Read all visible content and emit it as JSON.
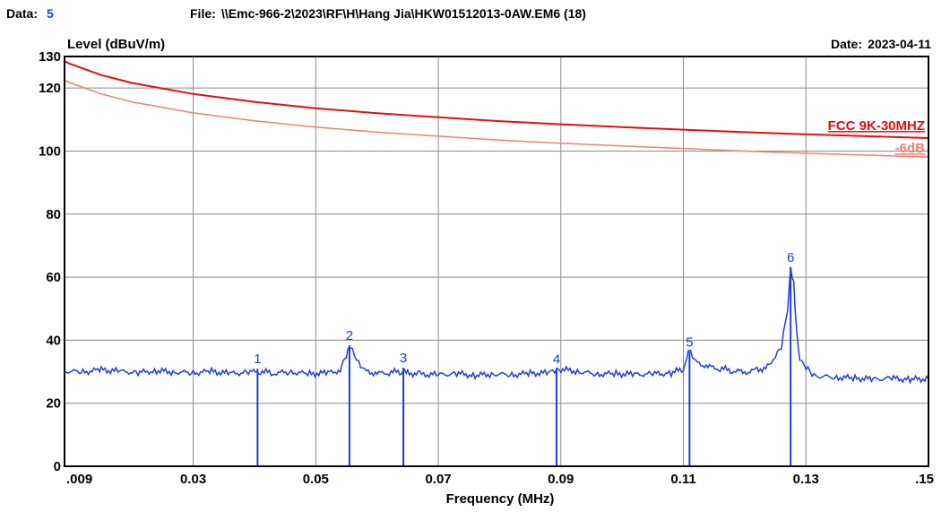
{
  "header": {
    "data_label": "Data:",
    "data_value": "5",
    "file_label": "File:",
    "file_value": "\\\\Emc-966-2\\2023\\RF\\H\\Hang Jia\\HKW01512013-0AW.EM6  (18)",
    "date_label": "Date:",
    "date_value": "2023-04-11"
  },
  "chart_data": {
    "type": "line",
    "xlabel": "Frequency (MHz)",
    "ylabel": "Level (dBuV/m)",
    "xlim": [
      0.009,
      0.15
    ],
    "ylim": [
      0,
      130
    ],
    "grid": true,
    "x_ticks": [
      {
        "value": 0.009,
        "label": ".009"
      },
      {
        "value": 0.03,
        "label": "0.03"
      },
      {
        "value": 0.05,
        "label": "0.05"
      },
      {
        "value": 0.07,
        "label": "0.07"
      },
      {
        "value": 0.09,
        "label": "0.09"
      },
      {
        "value": 0.11,
        "label": "0.11"
      },
      {
        "value": 0.13,
        "label": "0.13"
      },
      {
        "value": 0.15,
        "label": ".15"
      }
    ],
    "y_ticks": [
      {
        "value": 0,
        "label": "0"
      },
      {
        "value": 20,
        "label": "20"
      },
      {
        "value": 40,
        "label": "40"
      },
      {
        "value": 60,
        "label": "60"
      },
      {
        "value": 80,
        "label": "80"
      },
      {
        "value": 100,
        "label": "100"
      },
      {
        "value": 120,
        "label": "120"
      },
      {
        "value": 130,
        "label": "130"
      }
    ],
    "limit_lines": [
      {
        "label": "FCC 9K-30MHZ",
        "color": "#e01010",
        "x": [
          0.009,
          0.01,
          0.015,
          0.02,
          0.03,
          0.04,
          0.05,
          0.06,
          0.07,
          0.08,
          0.09,
          0.1,
          0.11,
          0.12,
          0.13,
          0.14,
          0.15
        ],
        "y": [
          128.5,
          127.6,
          124.1,
          121.6,
          118.1,
          115.6,
          113.6,
          112.0,
          110.7,
          109.5,
          108.5,
          107.6,
          106.8,
          106.0,
          105.3,
          104.7,
          104.1
        ]
      },
      {
        "label": "-6dB",
        "color": "#f08070",
        "x": [
          0.009,
          0.01,
          0.015,
          0.02,
          0.03,
          0.04,
          0.05,
          0.06,
          0.07,
          0.08,
          0.09,
          0.1,
          0.11,
          0.12,
          0.13,
          0.14,
          0.15
        ],
        "y": [
          122.5,
          121.6,
          118.1,
          115.6,
          112.1,
          109.6,
          107.6,
          106.0,
          104.7,
          103.5,
          102.5,
          101.6,
          100.8,
          100.0,
          99.3,
          98.7,
          98.1
        ]
      }
    ],
    "series": [
      {
        "color": "#1f3fd8",
        "x": [
          0.009,
          0.012,
          0.015,
          0.018,
          0.021,
          0.024,
          0.027,
          0.03,
          0.033,
          0.036,
          0.039,
          0.041,
          0.043,
          0.046,
          0.049,
          0.052,
          0.054,
          0.055,
          0.0555,
          0.056,
          0.057,
          0.058,
          0.06,
          0.062,
          0.064,
          0.0645,
          0.065,
          0.067,
          0.07,
          0.073,
          0.076,
          0.079,
          0.082,
          0.085,
          0.088,
          0.089,
          0.09,
          0.093,
          0.096,
          0.099,
          0.102,
          0.105,
          0.108,
          0.11,
          0.1108,
          0.1112,
          0.112,
          0.114,
          0.116,
          0.118,
          0.12,
          0.122,
          0.124,
          0.125,
          0.126,
          0.127,
          0.1275,
          0.128,
          0.1285,
          0.129,
          0.13,
          0.131,
          0.132,
          0.135,
          0.138,
          0.141,
          0.144,
          0.147,
          0.15
        ],
        "y": [
          30.2,
          29.9,
          30.6,
          30.1,
          29.7,
          30.3,
          29.9,
          29.6,
          30.1,
          29.4,
          29.8,
          30.2,
          29.5,
          29.9,
          29.3,
          29.6,
          30.4,
          35.5,
          38.4,
          37.0,
          32.5,
          30.2,
          29.4,
          29.8,
          30.1,
          30.6,
          29.6,
          29.2,
          29.0,
          29.4,
          28.8,
          29.3,
          29.0,
          29.5,
          29.6,
          30.3,
          30.8,
          30.0,
          29.2,
          29.4,
          29.1,
          29.3,
          29.5,
          31.0,
          36.3,
          35.8,
          33.0,
          31.6,
          31.0,
          30.4,
          29.8,
          30.5,
          31.5,
          34.5,
          38.0,
          50.0,
          63.2,
          58.0,
          42.0,
          33.5,
          31.4,
          29.5,
          28.6,
          28.2,
          28.0,
          27.6,
          27.9,
          27.5,
          27.8
        ]
      }
    ],
    "markers": [
      {
        "label": "1",
        "x": 0.0405,
        "y": 31.0
      },
      {
        "label": "2",
        "x": 0.0555,
        "y": 38.4
      },
      {
        "label": "3",
        "x": 0.0643,
        "y": 31.3
      },
      {
        "label": "4",
        "x": 0.0893,
        "y": 30.8
      },
      {
        "label": "5",
        "x": 0.111,
        "y": 36.3
      },
      {
        "label": "6",
        "x": 0.1275,
        "y": 63.2
      }
    ]
  }
}
